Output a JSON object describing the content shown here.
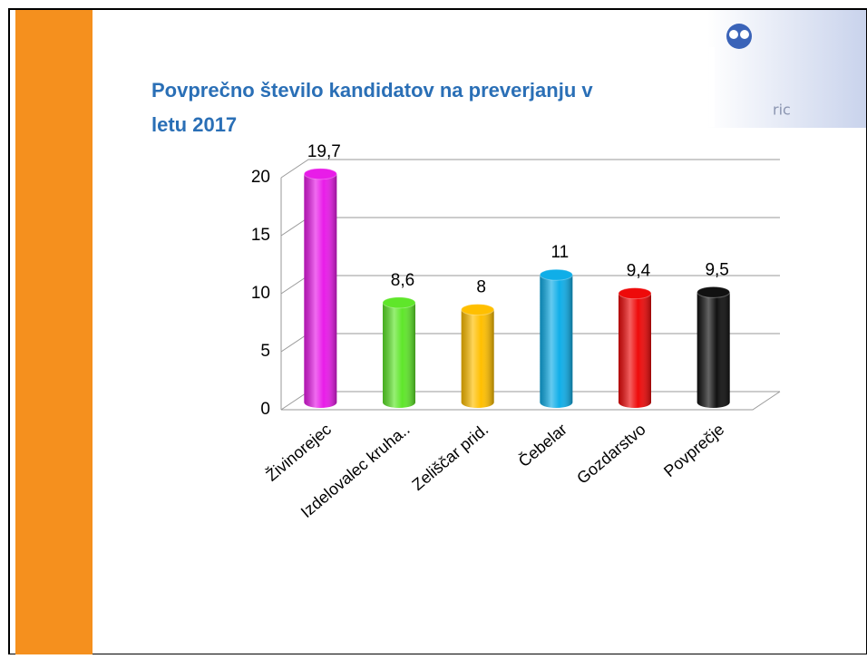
{
  "chart_data": {
    "type": "bar3d",
    "title_lines": [
      "Povprečno število kandidatov na preverjanju v",
      "letu 2017"
    ],
    "categories": [
      "Živinorejec",
      "Izdelovalec kruha..",
      "Zeliščar prid.",
      "Čebelar",
      "Gozdarstvo",
      "Povprečje"
    ],
    "values": [
      19.7,
      8.6,
      8,
      11,
      9.4,
      9.5
    ],
    "value_labels": [
      "19,7",
      "8,6",
      "8",
      "11",
      "9,4",
      "9,5"
    ],
    "colors": [
      "#e81ce8",
      "#5fe62a",
      "#ffbf00",
      "#10aee8",
      "#ee0a0a",
      "#111111"
    ],
    "ylim": [
      0,
      20
    ],
    "yticks": [
      0,
      5,
      10,
      15,
      20
    ],
    "grid": true
  },
  "logo": {
    "text": "ric"
  }
}
